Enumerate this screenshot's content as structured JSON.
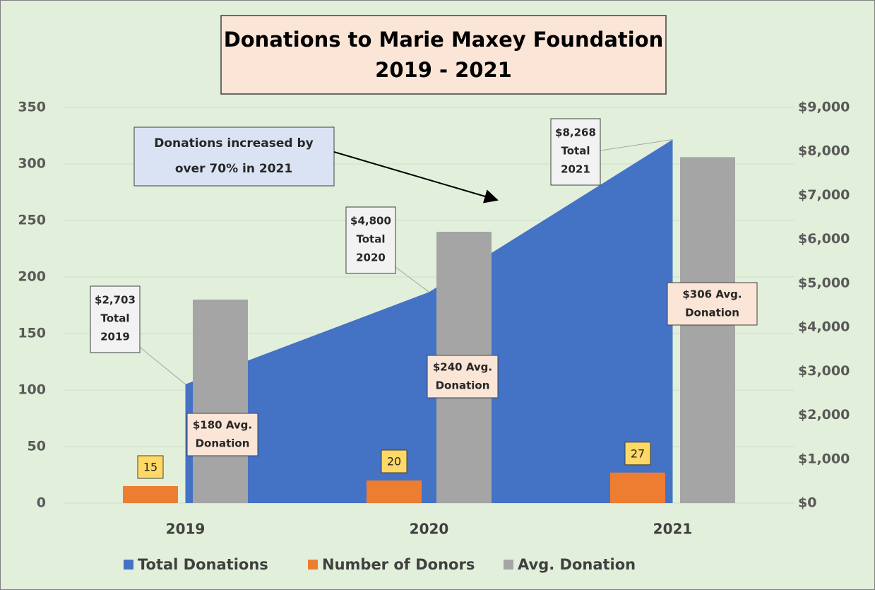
{
  "chart_data": {
    "type": "combo",
    "title": [
      "Donations to Marie Maxey Foundation",
      "2019 - 2021"
    ],
    "annotation": [
      "Donations increased by",
      "over 70% in 2021"
    ],
    "categories": [
      "2019",
      "2020",
      "2021"
    ],
    "ylim": [
      0,
      350
    ],
    "yticks": [
      0,
      50,
      100,
      150,
      200,
      250,
      300,
      350
    ],
    "y2lim": [
      0,
      9000
    ],
    "y2ticks": [
      {
        "value": 0,
        "label": "$0"
      },
      {
        "value": 1000,
        "label": "$1,000"
      },
      {
        "value": 2000,
        "label": "$2,000"
      },
      {
        "value": 3000,
        "label": "$3,000"
      },
      {
        "value": 4000,
        "label": "$4,000"
      },
      {
        "value": 5000,
        "label": "$5,000"
      },
      {
        "value": 6000,
        "label": "$6,000"
      },
      {
        "value": 7000,
        "label": "$7,000"
      },
      {
        "value": 8000,
        "label": "$8,000"
      },
      {
        "value": 9000,
        "label": "$9,000"
      }
    ],
    "grid": true,
    "legend": "bottom",
    "series": [
      {
        "name": "Total Donations",
        "type": "area",
        "axis": "y2",
        "color": "#4472c4",
        "values": [
          2703,
          4800,
          8268
        ],
        "value_labels": [
          [
            "$2,703",
            "Total",
            "2019"
          ],
          [
            "$4,800",
            "Total",
            "2020"
          ],
          [
            "$8,268",
            "Total",
            "2021"
          ]
        ]
      },
      {
        "name": "Number of Donors",
        "type": "bar",
        "color": "#ed7d31",
        "values": [
          15,
          20,
          27
        ]
      },
      {
        "name": "Avg. Donation",
        "type": "bar",
        "color": "#a5a5a5",
        "values": [
          180,
          240,
          306
        ],
        "value_labels": [
          [
            "$180 Avg.",
            "Donation"
          ],
          [
            "$240 Avg.",
            "Donation"
          ],
          [
            "$306 Avg.",
            "Donation"
          ]
        ]
      }
    ]
  }
}
